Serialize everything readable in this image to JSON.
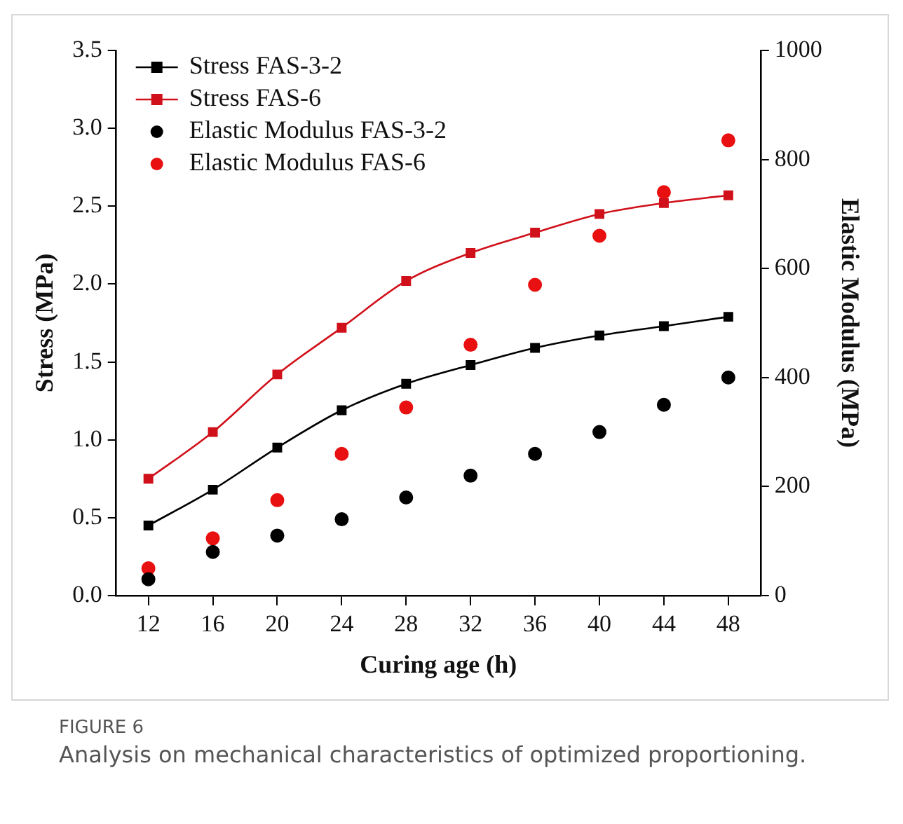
{
  "chart_data": {
    "type": "line",
    "xlabel": "Curing age (h)",
    "ylabel": "Stress (MPa)",
    "y2label": "Elastic Modulus (MPa)",
    "x": [
      12,
      16,
      20,
      24,
      28,
      32,
      36,
      40,
      44,
      48
    ],
    "xlim": [
      10,
      50
    ],
    "xticks": [
      12,
      16,
      20,
      24,
      28,
      32,
      36,
      40,
      44,
      48
    ],
    "ylim": [
      0,
      3.5
    ],
    "yticks": [
      {
        "value": 0,
        "label": "0.0"
      },
      0.5,
      {
        "value": 1,
        "label": "1.0"
      },
      1.5,
      {
        "value": 2,
        "label": "2.0"
      },
      2.5,
      {
        "value": 3,
        "label": "3.0"
      },
      3.5
    ],
    "y2lim": [
      0,
      1000
    ],
    "y2ticks": [
      0,
      200,
      400,
      600,
      800,
      1000
    ],
    "grid": false,
    "legend": "top left",
    "series": [
      {
        "name": "Stress FAS-3-2",
        "marker": "square",
        "color": "#000000",
        "values": [
          0.45,
          0.68,
          0.95,
          1.19,
          1.36,
          1.48,
          1.59,
          1.67,
          1.73,
          1.79
        ]
      },
      {
        "name": "Stress FAS-6",
        "marker": "square",
        "color": "#d0101a",
        "values": [
          0.75,
          1.05,
          1.42,
          1.72,
          2.02,
          2.2,
          2.33,
          2.45,
          2.52,
          2.57
        ]
      },
      {
        "name": "Elastic Modulus FAS-3-2",
        "type": "scatter",
        "marker": "circle",
        "axis": "y2",
        "color": "#000000",
        "values": [
          30,
          80,
          110,
          140,
          180,
          220,
          260,
          300,
          350,
          400
        ]
      },
      {
        "name": "Elastic Modulus FAS-6",
        "type": "scatter",
        "marker": "circle",
        "axis": "y2",
        "color": "#e81010",
        "values": [
          50,
          105,
          175,
          260,
          345,
          460,
          570,
          660,
          740,
          835
        ]
      }
    ],
    "annotations": [
      "FIGURE 6",
      "Analysis on mechanical characteristics of optimized proportioning."
    ]
  }
}
